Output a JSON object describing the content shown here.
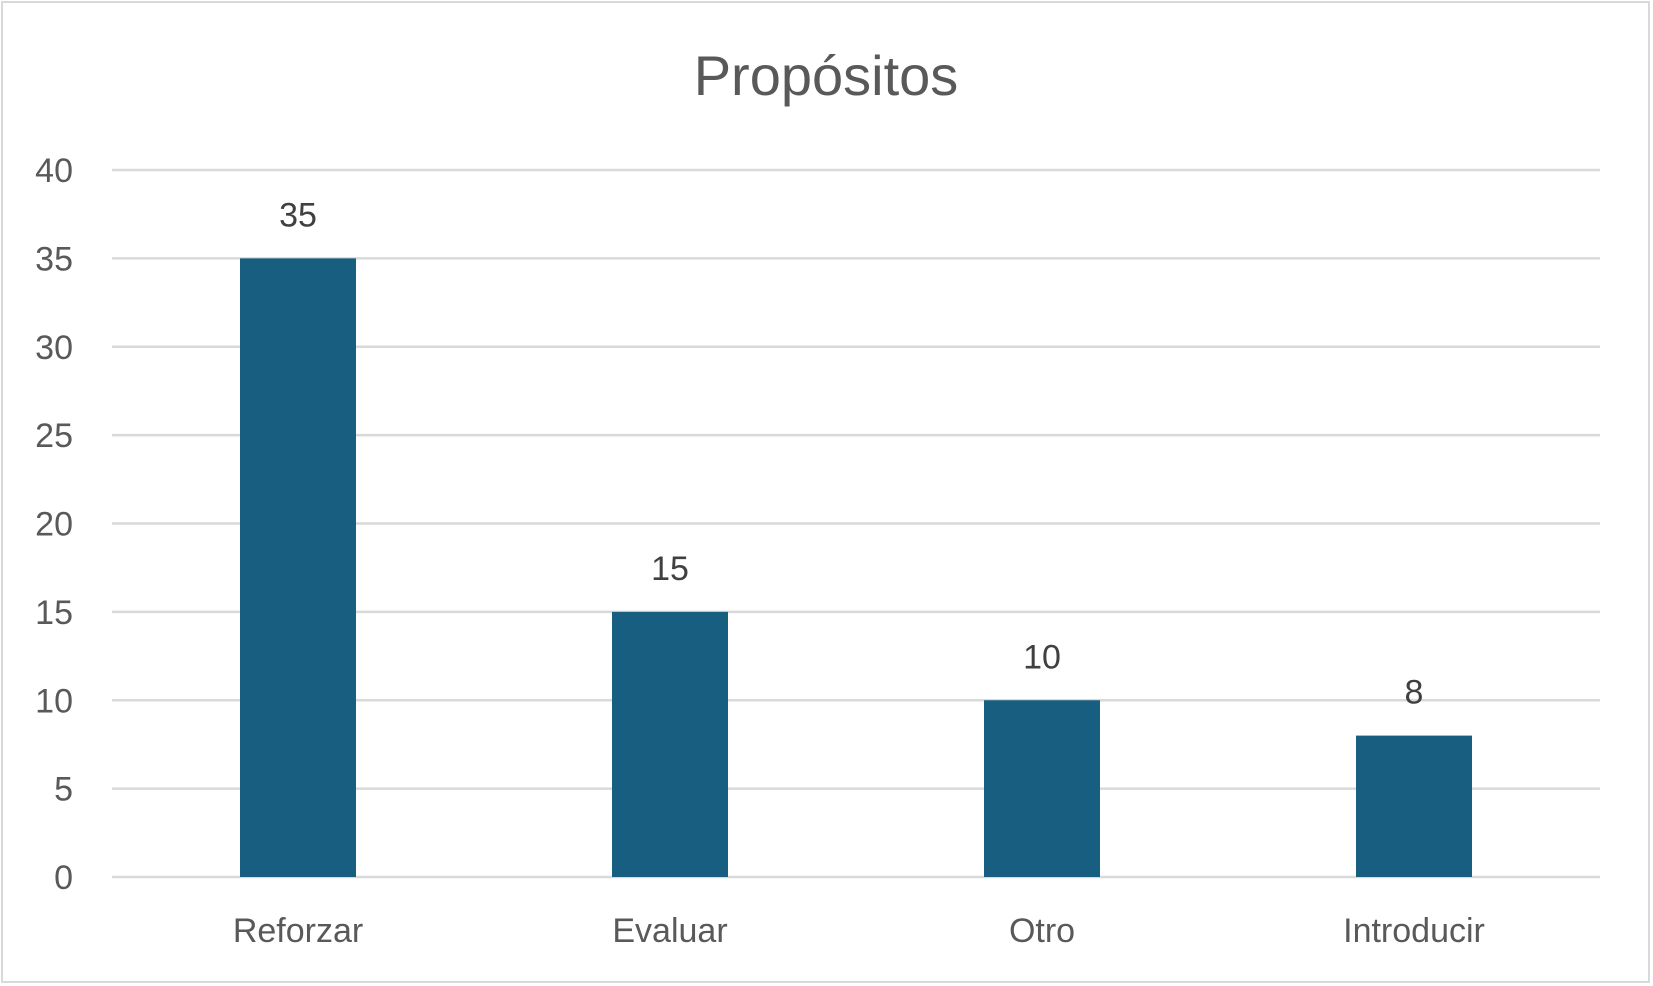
{
  "chart_data": {
    "type": "bar",
    "title": "Propósitos",
    "xlabel": "",
    "ylabel": "",
    "categories": [
      "Reforzar",
      "Evaluar",
      "Otro",
      "Introducir"
    ],
    "values": [
      35,
      15,
      10,
      8
    ],
    "data_labels": [
      "35",
      "15",
      "10",
      "8"
    ],
    "ylim": [
      0,
      40
    ],
    "yticks": [
      0,
      5,
      10,
      15,
      20,
      25,
      30,
      35,
      40
    ],
    "ytick_labels": [
      "0",
      "5",
      "10",
      "15",
      "20",
      "25",
      "30",
      "35",
      "40"
    ],
    "grid": true,
    "legend": "none",
    "colors": {
      "bar": "#175e80",
      "grid": "#d9d9d9",
      "text": "#595959",
      "label": "#404040"
    }
  }
}
